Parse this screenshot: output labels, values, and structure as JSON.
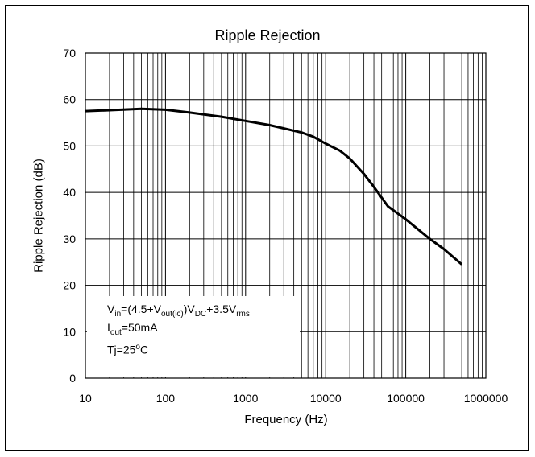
{
  "chart_data": {
    "type": "line",
    "title": "Ripple Rejection",
    "xlabel": "Frequency (Hz)",
    "ylabel": "Ripple Rejection (dB)",
    "xscale": "log",
    "xlim": [
      10,
      1000000
    ],
    "ylim": [
      0,
      70
    ],
    "grid": true,
    "x_tick_labels": [
      "10",
      "100",
      "1000",
      "10000",
      "100000",
      "1000000"
    ],
    "y_tick_labels": [
      "0",
      "10",
      "20",
      "30",
      "40",
      "50",
      "60",
      "70"
    ],
    "series": [
      {
        "x": [
          10,
          20,
          50,
          100,
          200,
          500,
          1000,
          2000,
          5000,
          7000,
          10000,
          15000,
          20000,
          30000,
          40000,
          60000,
          100000,
          200000,
          300000,
          500000
        ],
        "y": [
          57.5,
          57.7,
          58.0,
          57.8,
          57.2,
          56.3,
          55.4,
          54.5,
          52.9,
          52.0,
          50.5,
          49.0,
          47.3,
          44.0,
          41.2,
          37.0,
          34.2,
          30.0,
          27.8,
          24.5
        ]
      }
    ],
    "annotation": {
      "line1": {
        "a": "V",
        "b": "in",
        "c": "=(4.5+V",
        "d": "out(ic)",
        "e": ")V",
        "f": "DC",
        "g": "+3.5V",
        "h": "rms"
      },
      "line2": {
        "a": "I",
        "b": "out",
        "c": "=50mA"
      },
      "line3": {
        "a": "Tj=25",
        "b": "o",
        "c": "C"
      }
    }
  }
}
